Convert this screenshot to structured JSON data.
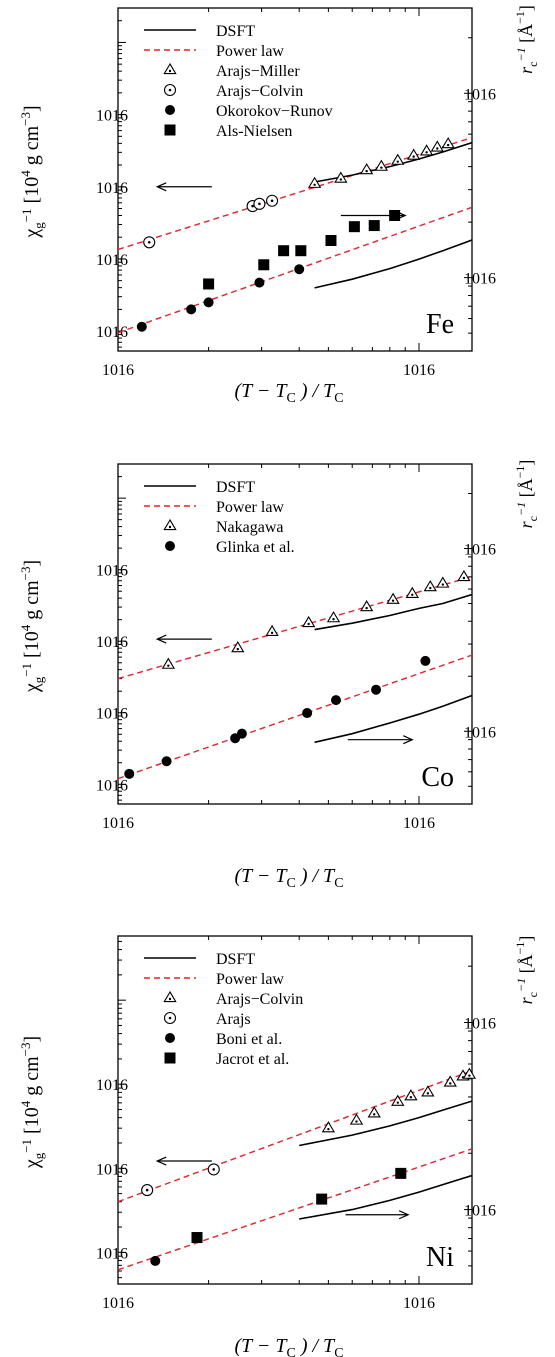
{
  "chart_data": [
    {
      "type": "scatter",
      "element": "Fe",
      "xlabel": "(T − T_C) / T_C",
      "ylabel_left": "χg−1 [10^4 g cm−3]",
      "ylabel_right": "rc−1 [Å−1]",
      "x_scale": "log",
      "xlim": [
        0.01,
        0.15
      ],
      "x_ticks": [
        {
          "v": 0.01,
          "label": "10",
          "exp": "-2"
        },
        {
          "v": 0.1,
          "label": "10",
          "exp": "-1"
        }
      ],
      "y_left_scale": "log",
      "y_left_lim": [
        0.00053,
        30
      ],
      "y_left_ticks": [
        {
          "v": 0.001,
          "label": "10",
          "exp": "-3"
        },
        {
          "v": 0.01,
          "label": "10",
          "exp": "-2"
        },
        {
          "v": 0.1,
          "label": "10",
          "exp": "-1"
        },
        {
          "v": 1,
          "label": "10",
          "exp": "0"
        }
      ],
      "y_right_scale": "log",
      "y_right_lim": [
        0.04,
        2.9
      ],
      "y_right_ticks": [
        {
          "v": 0.1,
          "label": "10",
          "exp": "-1"
        },
        {
          "v": 1,
          "label": "10",
          "exp": "0"
        }
      ],
      "legend": [
        {
          "label": "DSFT",
          "style": "solid"
        },
        {
          "label": "Power law",
          "style": "dashed-red"
        },
        {
          "label": "Arajs−Miller",
          "style": "triangle-dot"
        },
        {
          "label": "Arajs−Colvin",
          "style": "circle-dot"
        },
        {
          "label": "Okorokov−Runov",
          "style": "filled-circle"
        },
        {
          "label": "Als-Nielsen",
          "style": "filled-square"
        }
      ],
      "lines": [
        {
          "axis": "left",
          "kind": "power",
          "x": [
            0.01,
            0.15
          ],
          "y": [
            0.0135,
            0.48
          ]
        },
        {
          "axis": "left",
          "kind": "power",
          "x": [
            0.01,
            0.15
          ],
          "y": [
            0.00095,
            0.052
          ]
        },
        {
          "axis": "right",
          "kind": "dsft",
          "x": [
            0.045,
            0.06,
            0.08,
            0.1,
            0.12,
            0.15
          ],
          "y": [
            0.33,
            0.36,
            0.4,
            0.44,
            0.48,
            0.54
          ]
        },
        {
          "axis": "right",
          "kind": "dsft",
          "x": [
            0.045,
            0.06,
            0.08,
            0.1,
            0.12,
            0.15
          ],
          "y": [
            0.088,
            0.098,
            0.112,
            0.126,
            0.14,
            0.16
          ]
        }
      ],
      "series": [
        {
          "name": "Arajs−Miller",
          "marker": "triangle-dot",
          "x": [
            0.045,
            0.055,
            0.067,
            0.075,
            0.085,
            0.096,
            0.106,
            0.115,
            0.125
          ],
          "y": [
            0.11,
            0.13,
            0.17,
            0.19,
            0.23,
            0.27,
            0.31,
            0.35,
            0.39
          ]
        },
        {
          "name": "Arajs−Colvin",
          "marker": "circle-dot",
          "x": [
            0.0127,
            0.028,
            0.0295,
            0.0325
          ],
          "y": [
            0.017,
            0.054,
            0.058,
            0.064
          ]
        },
        {
          "name": "Okorokov−Runov",
          "marker": "filled-circle",
          "x": [
            0.012,
            0.0175,
            0.02,
            0.0295,
            0.04
          ],
          "y": [
            0.00115,
            0.002,
            0.0025,
            0.0047,
            0.0072
          ]
        },
        {
          "name": "Als-Nielsen",
          "marker": "filled-square",
          "x": [
            0.02,
            0.0305,
            0.0355,
            0.0405,
            0.051,
            0.061,
            0.071,
            0.083
          ],
          "y": [
            0.0045,
            0.0083,
            0.013,
            0.013,
            0.018,
            0.028,
            0.029,
            0.04
          ]
        }
      ],
      "annotations": {
        "element_label": "Fe",
        "arrow_left": {
          "x_from": 0.0205,
          "x_to": 0.0135,
          "y": 0.1
        },
        "arrow_right": {
          "x_from": 0.055,
          "x_to": 0.09,
          "y": 0.04
        }
      }
    },
    {
      "type": "scatter",
      "element": "Co",
      "xlabel": "(T − T_C) / T_C",
      "ylabel_left": "χg−1 [10^4 g cm−3]",
      "ylabel_right": "rc−1 [Å−1]",
      "x_scale": "log",
      "xlim": [
        0.01,
        0.15
      ],
      "x_ticks": [
        {
          "v": 0.01,
          "label": "10",
          "exp": "-2"
        },
        {
          "v": 0.1,
          "label": "10",
          "exp": "-1"
        }
      ],
      "y_left_scale": "log",
      "y_left_lim": [
        0.00053,
        30
      ],
      "y_left_ticks": [
        {
          "v": 0.001,
          "label": "10",
          "exp": "-3"
        },
        {
          "v": 0.01,
          "label": "10",
          "exp": "-2"
        },
        {
          "v": 0.1,
          "label": "10",
          "exp": "-1"
        },
        {
          "v": 1,
          "label": "10",
          "exp": "0"
        }
      ],
      "y_right_scale": "log",
      "y_right_lim": [
        0.04,
        2.9
      ],
      "y_right_ticks": [
        {
          "v": 0.1,
          "label": "10",
          "exp": "-1"
        },
        {
          "v": 1,
          "label": "10",
          "exp": "0"
        }
      ],
      "legend": [
        {
          "label": "DSFT",
          "style": "solid"
        },
        {
          "label": "Power law",
          "style": "dashed-red"
        },
        {
          "label": "Nakagawa",
          "style": "triangle-dot"
        },
        {
          "label": "Glinka et al.",
          "style": "filled-circle"
        }
      ],
      "lines": [
        {
          "axis": "left",
          "kind": "power",
          "x": [
            0.01,
            0.15
          ],
          "y": [
            0.03,
            0.8
          ]
        },
        {
          "axis": "left",
          "kind": "power",
          "x": [
            0.01,
            0.15
          ],
          "y": [
            0.0012,
            0.064
          ]
        },
        {
          "axis": "right",
          "kind": "dsft",
          "x": [
            0.045,
            0.06,
            0.08,
            0.1,
            0.12,
            0.15
          ],
          "y": [
            0.36,
            0.39,
            0.43,
            0.47,
            0.5,
            0.56
          ]
        },
        {
          "axis": "right",
          "kind": "dsft",
          "x": [
            0.045,
            0.06,
            0.08,
            0.1,
            0.12,
            0.15
          ],
          "y": [
            0.087,
            0.097,
            0.111,
            0.124,
            0.137,
            0.157
          ]
        }
      ],
      "series": [
        {
          "name": "Nakagawa",
          "marker": "triangle-dot",
          "x": [
            0.0147,
            0.025,
            0.0325,
            0.043,
            0.052,
            0.067,
            0.082,
            0.095,
            0.109,
            0.12,
            0.141
          ],
          "y": [
            0.047,
            0.08,
            0.135,
            0.18,
            0.21,
            0.3,
            0.38,
            0.46,
            0.57,
            0.64,
            0.79
          ]
        },
        {
          "name": "Glinka et al.",
          "marker": "filled-circle",
          "x": [
            0.0109,
            0.0145,
            0.0245,
            0.0258,
            0.0425,
            0.053,
            0.072,
            0.105
          ],
          "y": [
            0.0014,
            0.0021,
            0.0044,
            0.0051,
            0.0099,
            0.015,
            0.021,
            0.053
          ]
        }
      ],
      "annotations": {
        "element_label": "Co",
        "arrow_left": {
          "x_from": 0.0205,
          "x_to": 0.0135,
          "y": 0.107
        },
        "arrow_right": {
          "x_from": 0.058,
          "x_to": 0.095,
          "y": 0.0042
        }
      }
    },
    {
      "type": "scatter",
      "element": "Ni",
      "xlabel": "(T − T_C) / T_C",
      "ylabel_left": "χg−1 [10^4 g cm−3]",
      "ylabel_right": "rc−1 [Å−1]",
      "x_scale": "log",
      "xlim": [
        0.01,
        0.15
      ],
      "x_ticks": [
        {
          "v": 0.01,
          "label": "10",
          "exp": "-2"
        },
        {
          "v": 0.1,
          "label": "10",
          "exp": "-1"
        }
      ],
      "y_left_scale": "log",
      "y_left_lim": [
        0.0042,
        58
      ],
      "y_left_ticks": [
        {
          "v": 0.01,
          "label": "10",
          "exp": "-2"
        },
        {
          "v": 0.1,
          "label": "10",
          "exp": "-1"
        },
        {
          "v": 1,
          "label": "10",
          "exp": "0"
        }
      ],
      "y_right_scale": "log",
      "y_right_lim": [
        0.04,
        2.9
      ],
      "y_right_ticks": [
        {
          "v": 0.1,
          "label": "10",
          "exp": "-1"
        },
        {
          "v": 1,
          "label": "10",
          "exp": "0"
        }
      ],
      "legend": [
        {
          "label": "DSFT",
          "style": "solid"
        },
        {
          "label": "Power law",
          "style": "dashed-red"
        },
        {
          "label": "Arajs−Colvin",
          "style": "triangle-dot"
        },
        {
          "label": "Arajs",
          "style": "circle-dot"
        },
        {
          "label": "Boni et al.",
          "style": "filled-circle"
        },
        {
          "label": "Jacrot et al.",
          "style": "filled-square"
        }
      ],
      "lines": [
        {
          "axis": "left",
          "kind": "power",
          "x": [
            0.01,
            0.15
          ],
          "y": [
            0.04,
            1.45
          ]
        },
        {
          "axis": "left",
          "kind": "power",
          "x": [
            0.01,
            0.15
          ],
          "y": [
            0.0062,
            0.17
          ]
        },
        {
          "axis": "right",
          "kind": "dsft",
          "x": [
            0.04,
            0.06,
            0.08,
            0.1,
            0.12,
            0.15
          ],
          "y": [
            0.22,
            0.25,
            0.28,
            0.31,
            0.34,
            0.38
          ]
        },
        {
          "axis": "right",
          "kind": "dsft",
          "x": [
            0.04,
            0.06,
            0.08,
            0.1,
            0.12,
            0.15
          ],
          "y": [
            0.089,
            0.1,
            0.112,
            0.124,
            0.136,
            0.152
          ]
        }
      ],
      "series": [
        {
          "name": "Arajs−Colvin",
          "marker": "triangle-dot",
          "x": [
            0.05,
            0.062,
            0.071,
            0.085,
            0.094,
            0.107,
            0.127,
            0.14,
            0.147
          ],
          "y": [
            0.3,
            0.37,
            0.45,
            0.62,
            0.72,
            0.8,
            1.05,
            1.24,
            1.3
          ]
        },
        {
          "name": "Arajs",
          "marker": "circle-dot",
          "x": [
            0.0125,
            0.0208
          ],
          "y": [
            0.055,
            0.097
          ]
        },
        {
          "name": "Boni et al.",
          "marker": "filled-circle",
          "x": [
            0.0133
          ],
          "y": [
            0.0079
          ]
        },
        {
          "name": "Jacrot et al.",
          "marker": "filled-square",
          "x": [
            0.0183,
            0.0475,
            0.087
          ],
          "y": [
            0.015,
            0.043,
            0.087
          ]
        }
      ],
      "annotations": {
        "element_label": "Ni",
        "arrow_left": {
          "x_from": 0.0205,
          "x_to": 0.0135,
          "y": 0.122
        },
        "arrow_right": {
          "x_from": 0.057,
          "x_to": 0.092,
          "y": 0.028
        }
      }
    }
  ]
}
